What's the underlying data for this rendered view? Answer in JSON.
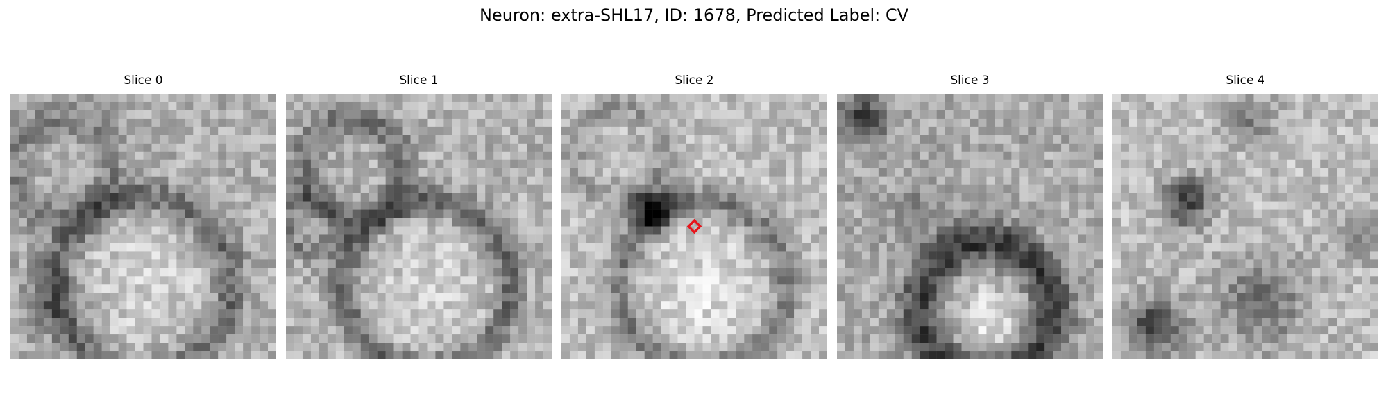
{
  "figure": {
    "title": "Neuron: extra-SHL17, ID: 1678, Predicted Label: CV"
  },
  "panels": [
    {
      "title": "Slice 0"
    },
    {
      "title": "Slice 1"
    },
    {
      "title": "Slice 2"
    },
    {
      "title": "Slice 3"
    },
    {
      "title": "Slice 4"
    }
  ],
  "image_style": {
    "colormap": "grayscale",
    "marker_color": "#e8141b",
    "marker_shape": "diamond"
  }
}
